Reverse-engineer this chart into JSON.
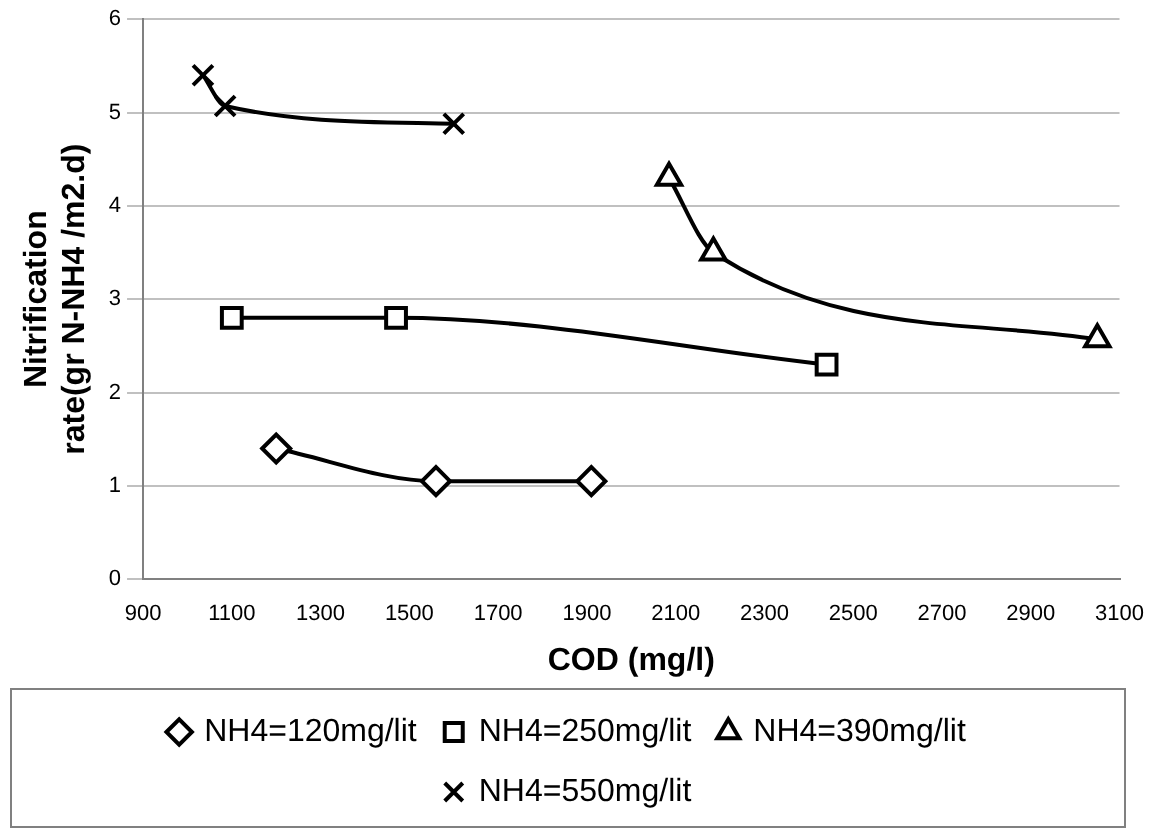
{
  "chart_data": {
    "type": "line",
    "xlabel": "COD (mg/l)",
    "ylabel": "Nitrification rate(gr N-NH4 /m2.d)",
    "xlim": [
      900,
      3100
    ],
    "xticks": [
      900,
      1100,
      1300,
      1500,
      1700,
      1900,
      2100,
      2300,
      2500,
      2700,
      2900,
      3100
    ],
    "ylim": [
      0,
      6
    ],
    "yticks": [
      0,
      1,
      2,
      3,
      4,
      5,
      6
    ],
    "grid": "y",
    "legend": "bottom",
    "series": [
      {
        "name": "NH4=120mg/lit",
        "color": "#000000",
        "marker": "diamond",
        "x": [
          1200,
          1560,
          1910
        ],
        "values": [
          1.4,
          1.05,
          1.05
        ]
      },
      {
        "name": "NH4=250mg/lit",
        "color": "#000000",
        "marker": "square",
        "x": [
          1100,
          1470,
          2440
        ],
        "values": [
          2.8,
          2.8,
          2.3
        ]
      },
      {
        "name": "NH4=390mg/lit",
        "color": "#000000",
        "marker": "triangle",
        "x": [
          2085,
          2185,
          3050
        ],
        "values": [
          4.3,
          3.5,
          2.57
        ]
      },
      {
        "name": "NH4=550mg/lit",
        "color": "#000000",
        "marker": "cross",
        "x": [
          1035,
          1085,
          1600
        ],
        "values": [
          5.4,
          5.07,
          4.88
        ]
      }
    ]
  }
}
